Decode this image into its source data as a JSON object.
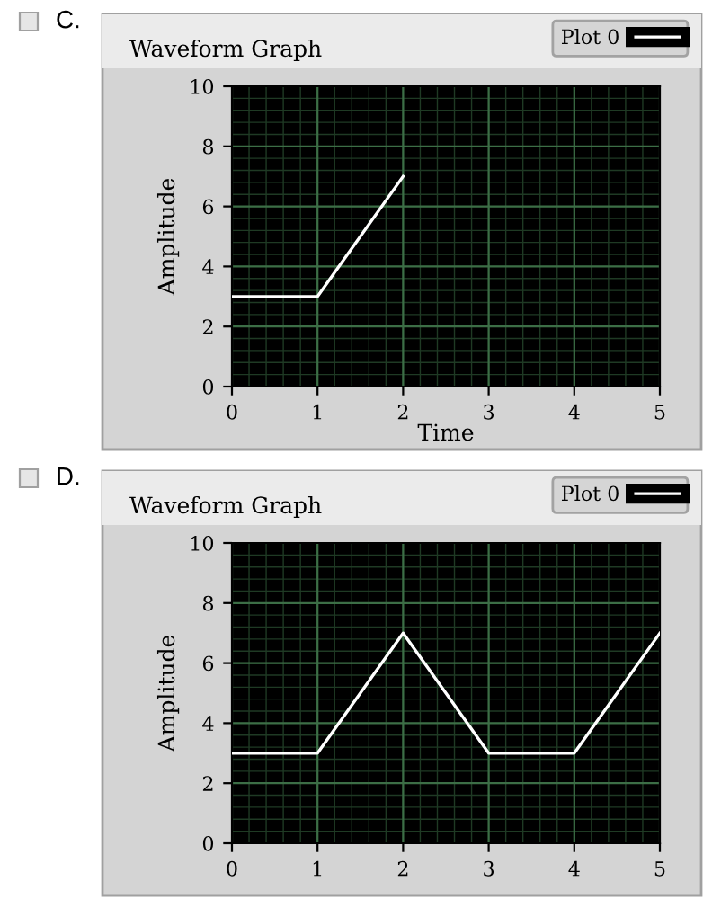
{
  "chart_data": [
    {
      "type": "line",
      "title": "Waveform Graph",
      "xlabel": "Time",
      "ylabel": "Amplitude",
      "annotations": [
        "C."
      ],
      "x": [
        0,
        1,
        2
      ],
      "series": [
        {
          "name": "Plot 0",
          "color": "#ffffff",
          "values": [
            3,
            3,
            7
          ]
        }
      ],
      "xlim": [
        0,
        5
      ],
      "xticks": [
        0,
        1,
        2,
        3,
        4,
        5
      ],
      "ylim": [
        0,
        10
      ],
      "yticks": [
        0,
        2,
        4,
        6,
        8,
        10
      ],
      "grid": true,
      "legend": "top right",
      "marker": "none",
      "line_style": "solid"
    },
    {
      "type": "line",
      "title": "Waveform Graph",
      "ylabel": "Amplitude",
      "annotations": [
        "D."
      ],
      "x": [
        0,
        1,
        2,
        3,
        4,
        5
      ],
      "series": [
        {
          "name": "Plot 0",
          "color": "#ffffff",
          "values": [
            3,
            3,
            7,
            3,
            3,
            7
          ]
        }
      ],
      "xlim": [
        0,
        5
      ],
      "xticks": [
        0,
        1,
        2,
        3,
        4,
        5
      ],
      "ylim": [
        0,
        10
      ],
      "yticks": [
        0,
        2,
        4,
        6,
        8,
        10
      ],
      "grid": true,
      "legend": "top right",
      "marker": "none",
      "line_style": "solid"
    }
  ]
}
